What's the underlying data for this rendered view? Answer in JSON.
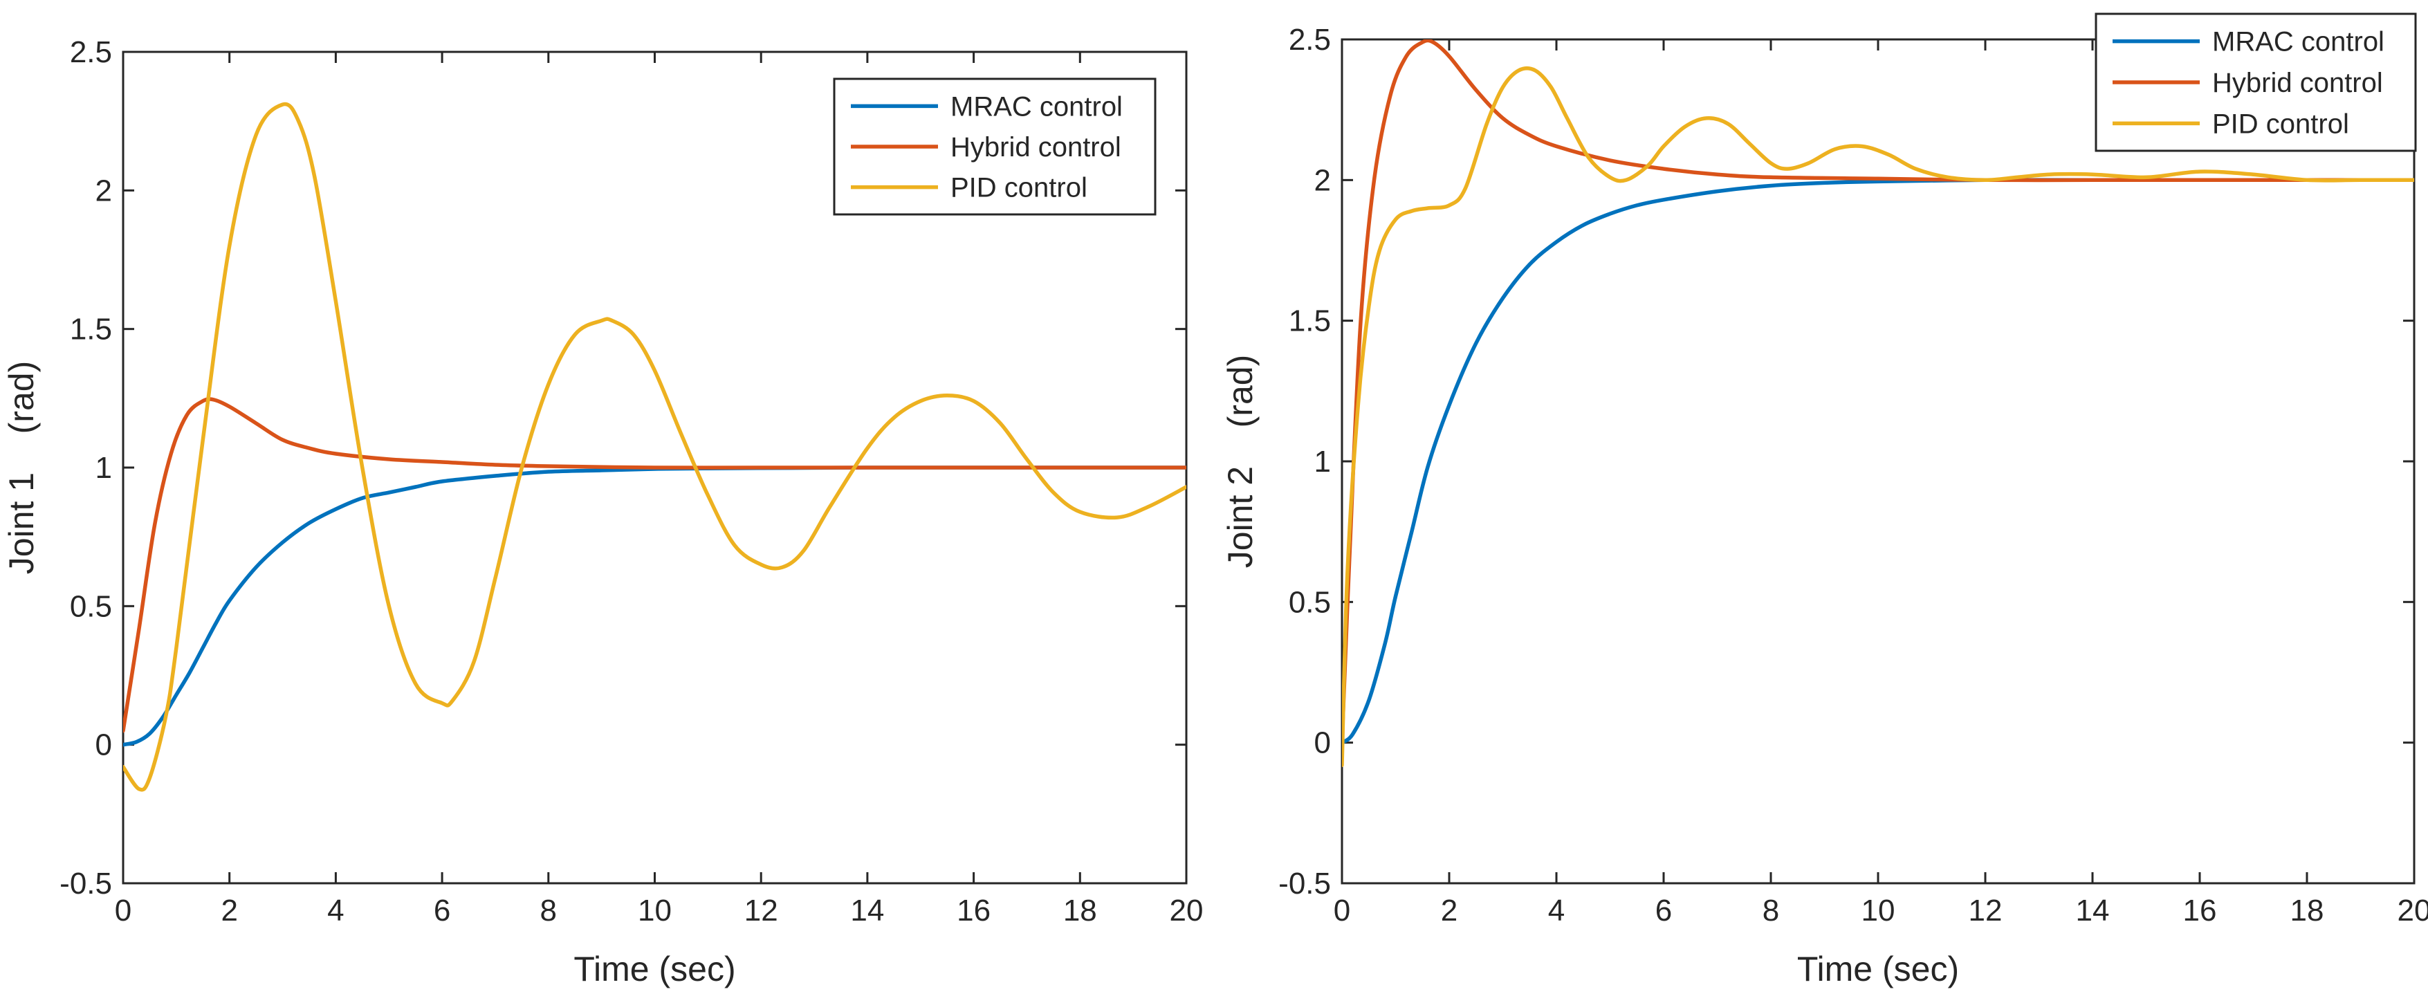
{
  "chart_data": [
    {
      "type": "line",
      "title": "",
      "xlabel": "Time (sec)",
      "ylabel": "Joint 1    (rad)",
      "xlim": [
        0,
        20
      ],
      "ylim": [
        -0.5,
        2.5
      ],
      "xticks": [
        0,
        2,
        4,
        6,
        8,
        10,
        12,
        14,
        16,
        18,
        20
      ],
      "yticks": [
        -0.5,
        0,
        0.5,
        1,
        1.5,
        2,
        2.5
      ],
      "xtick_labels": [
        "0",
        "2",
        "4",
        "6",
        "8",
        "10",
        "12",
        "14",
        "16",
        "18",
        "20"
      ],
      "ytick_labels": [
        "-0.5",
        "0",
        "0.5",
        "1",
        "1.5",
        "2",
        "2.5"
      ],
      "legend_position": "top-right-inset",
      "series": [
        {
          "name": "MRAC control",
          "color": "#0072BD",
          "x": [
            0,
            0.25,
            0.5,
            0.75,
            1,
            1.25,
            1.5,
            1.75,
            2,
            2.5,
            3,
            3.5,
            4,
            4.5,
            5,
            5.5,
            6,
            7,
            8,
            9,
            10,
            11,
            12,
            13,
            14,
            16,
            18,
            20
          ],
          "y": [
            0,
            0.01,
            0.04,
            0.1,
            0.18,
            0.26,
            0.35,
            0.44,
            0.52,
            0.64,
            0.73,
            0.8,
            0.85,
            0.89,
            0.91,
            0.93,
            0.95,
            0.97,
            0.985,
            0.99,
            0.995,
            0.997,
            0.998,
            0.999,
            1,
            1,
            1,
            1
          ]
        },
        {
          "name": "Hybrid control",
          "color": "#D95319",
          "x": [
            0,
            0.3,
            0.6,
            0.9,
            1.2,
            1.5,
            1.7,
            2,
            2.5,
            3,
            3.5,
            4,
            5,
            6,
            7,
            8,
            10,
            12,
            14,
            16,
            18,
            20
          ],
          "y": [
            0.05,
            0.42,
            0.8,
            1.05,
            1.19,
            1.24,
            1.245,
            1.22,
            1.16,
            1.1,
            1.07,
            1.05,
            1.03,
            1.02,
            1.01,
            1.005,
            1,
            1,
            1,
            1,
            1,
            1
          ]
        },
        {
          "name": "PID control",
          "color": "#EDB120",
          "x": [
            0,
            0.3,
            0.5,
            0.8,
            1,
            1.5,
            2,
            2.5,
            3,
            3.3,
            3.6,
            4,
            4.5,
            5,
            5.5,
            6,
            6.2,
            6.6,
            7,
            7.5,
            8,
            8.5,
            9,
            9.2,
            9.6,
            10,
            10.5,
            11,
            11.5,
            12,
            12.4,
            12.8,
            13.3,
            14,
            14.5,
            15,
            15.5,
            16,
            16.5,
            17,
            17.5,
            18,
            18.7,
            19.3,
            20
          ],
          "y": [
            -0.08,
            -0.16,
            -0.12,
            0.1,
            0.35,
            1.1,
            1.8,
            2.2,
            2.31,
            2.25,
            2.05,
            1.6,
            1.0,
            0.5,
            0.22,
            0.15,
            0.16,
            0.3,
            0.6,
            1.0,
            1.3,
            1.48,
            1.53,
            1.53,
            1.48,
            1.35,
            1.12,
            0.9,
            0.72,
            0.65,
            0.64,
            0.7,
            0.86,
            1.07,
            1.18,
            1.24,
            1.26,
            1.24,
            1.16,
            1.03,
            0.91,
            0.84,
            0.82,
            0.86,
            0.93
          ]
        }
      ]
    },
    {
      "type": "line",
      "title": "",
      "xlabel": "Time (sec)",
      "ylabel": "Joint 2    (rad)",
      "xlim": [
        0,
        20
      ],
      "ylim": [
        -0.5,
        2.5
      ],
      "xticks": [
        0,
        2,
        4,
        6,
        8,
        10,
        12,
        14,
        16,
        18,
        20
      ],
      "yticks": [
        -0.5,
        0,
        0.5,
        1,
        1.5,
        2,
        2.5
      ],
      "xtick_labels": [
        "0",
        "2",
        "4",
        "6",
        "8",
        "10",
        "12",
        "14",
        "16",
        "18",
        "20"
      ],
      "ytick_labels": [
        "-0.5",
        "0",
        "0.5",
        "1",
        "1.5",
        "2",
        "2.5"
      ],
      "legend_position": "top-right",
      "series": [
        {
          "name": "MRAC control",
          "color": "#0072BD",
          "x": [
            0,
            0.2,
            0.5,
            0.8,
            1,
            1.3,
            1.6,
            2,
            2.5,
            3,
            3.5,
            4,
            4.5,
            5,
            5.5,
            6,
            7,
            8,
            9,
            10,
            12,
            14,
            16,
            18,
            20
          ],
          "y": [
            0,
            0.03,
            0.15,
            0.35,
            0.52,
            0.75,
            0.98,
            1.2,
            1.42,
            1.58,
            1.7,
            1.78,
            1.84,
            1.88,
            1.91,
            1.93,
            1.96,
            1.98,
            1.99,
            1.995,
            2,
            2,
            2,
            2,
            2
          ]
        },
        {
          "name": "Hybrid control",
          "color": "#D95319",
          "x": [
            0,
            0.15,
            0.35,
            0.6,
            0.9,
            1.2,
            1.5,
            1.7,
            2,
            2.5,
            3,
            3.5,
            4,
            5,
            6,
            7,
            8,
            10,
            12,
            14,
            16,
            18,
            20
          ],
          "y": [
            0,
            0.7,
            1.5,
            2.0,
            2.3,
            2.44,
            2.49,
            2.49,
            2.44,
            2.32,
            2.22,
            2.16,
            2.12,
            2.07,
            2.04,
            2.02,
            2.01,
            2.005,
            2,
            2,
            2,
            2,
            2
          ]
        },
        {
          "name": "PID control",
          "color": "#EDB120",
          "x": [
            0,
            0.1,
            0.3,
            0.5,
            0.7,
            1,
            1.3,
            1.6,
            2,
            2.3,
            2.7,
            3,
            3.3,
            3.6,
            3.9,
            4.2,
            4.6,
            5,
            5.3,
            5.7,
            6,
            6.4,
            6.8,
            7.2,
            7.6,
            8,
            8.3,
            8.7,
            9.2,
            9.7,
            10.2,
            10.7,
            11.3,
            12,
            12.6,
            13.2,
            14,
            15,
            16,
            17,
            18,
            19,
            20
          ],
          "y": [
            -0.08,
            0.6,
            1.2,
            1.55,
            1.75,
            1.86,
            1.89,
            1.9,
            1.91,
            1.97,
            2.2,
            2.33,
            2.39,
            2.39,
            2.33,
            2.22,
            2.08,
            2.01,
            2.0,
            2.05,
            2.12,
            2.19,
            2.22,
            2.2,
            2.13,
            2.06,
            2.04,
            2.06,
            2.11,
            2.12,
            2.09,
            2.04,
            2.01,
            2.0,
            2.01,
            2.02,
            2.02,
            2.01,
            2.03,
            2.02,
            2.0,
            2.0,
            2.0
          ]
        }
      ]
    }
  ]
}
